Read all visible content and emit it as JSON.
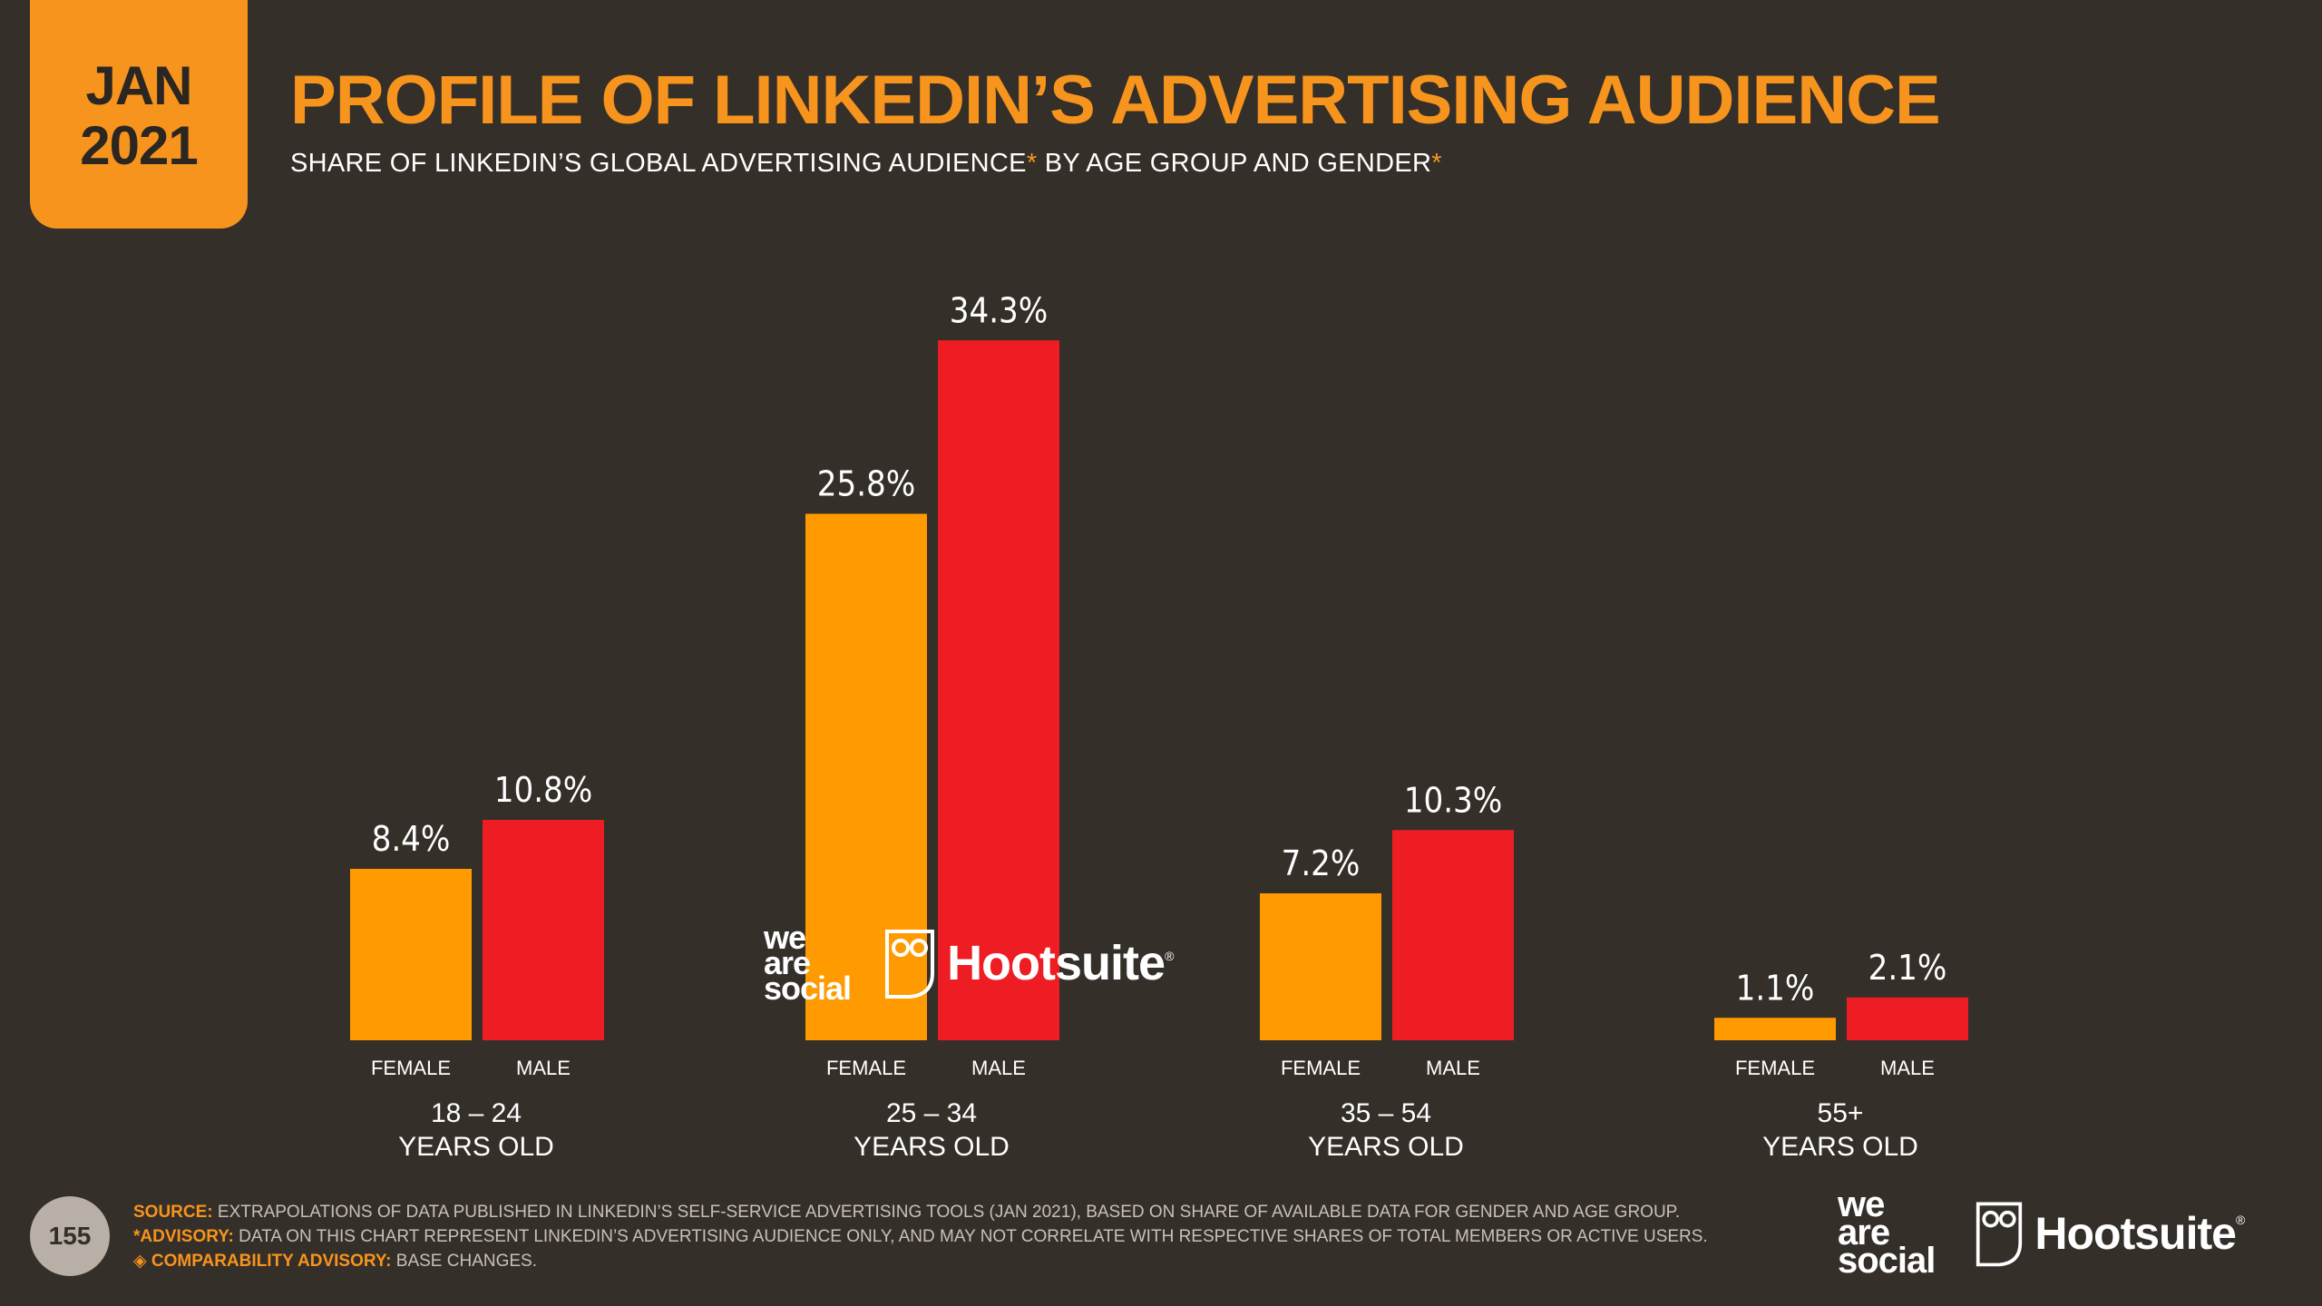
{
  "badge": {
    "month": "JAN",
    "year": "2021"
  },
  "title": "PROFILE OF LINKEDIN’S ADVERTISING AUDIENCE",
  "subtitle": {
    "part1": "SHARE OF LINKEDIN’S GLOBAL ADVERTISING AUDIENCE",
    "asterisk": "*",
    "part2": " BY AGE GROUP AND GENDER"
  },
  "colors": {
    "background": "#352f2a",
    "accent": "#f7941d",
    "female": "#ff9a00",
    "male": "#ee1d23"
  },
  "chart_data": {
    "type": "bar",
    "title": "PROFILE OF LINKEDIN’S ADVERTISING AUDIENCE",
    "xlabel": "",
    "ylabel": "",
    "ylim": [
      0,
      36
    ],
    "unit": "%",
    "categories": [
      {
        "line1": "18 – 24",
        "line2": "YEARS OLD"
      },
      {
        "line1": "25 – 34",
        "line2": "YEARS OLD"
      },
      {
        "line1": "35 – 54",
        "line2": "YEARS OLD"
      },
      {
        "line1": "55+",
        "line2": "YEARS OLD"
      }
    ],
    "series": [
      {
        "name": "FEMALE",
        "color": "#ff9a00",
        "values": [
          8.4,
          25.8,
          7.2,
          1.1
        ],
        "labels": [
          "8.4%",
          "25.8%",
          "7.2%",
          "1.1%"
        ]
      },
      {
        "name": "MALE",
        "color": "#ee1d23",
        "values": [
          10.8,
          34.3,
          10.3,
          2.1
        ],
        "labels": [
          "10.8%",
          "34.3%",
          "10.3%",
          "2.1%"
        ]
      }
    ]
  },
  "logos": {
    "was_line1": "we",
    "was_line2": "are",
    "was_line3": "social",
    "hootsuite": "Hootsuite",
    "reg": "®"
  },
  "footer": {
    "page_number": "155",
    "source_label": "SOURCE:",
    "source_text": " EXTRAPOLATIONS OF DATA PUBLISHED IN LINKEDIN’S SELF-SERVICE ADVERTISING TOOLS (JAN 2021), BASED ON SHARE OF AVAILABLE DATA FOR GENDER AND AGE GROUP.",
    "advisory_label": "*ADVISORY:",
    "advisory_text": " DATA ON THIS CHART REPRESENT LINKEDIN’S ADVERTISING AUDIENCE ONLY, AND MAY NOT CORRELATE WITH RESPECTIVE SHARES OF TOTAL MEMBERS OR ACTIVE USERS.",
    "comparability_label": "◈ COMPARABILITY ADVISORY:",
    "comparability_text": " BASE CHANGES."
  }
}
